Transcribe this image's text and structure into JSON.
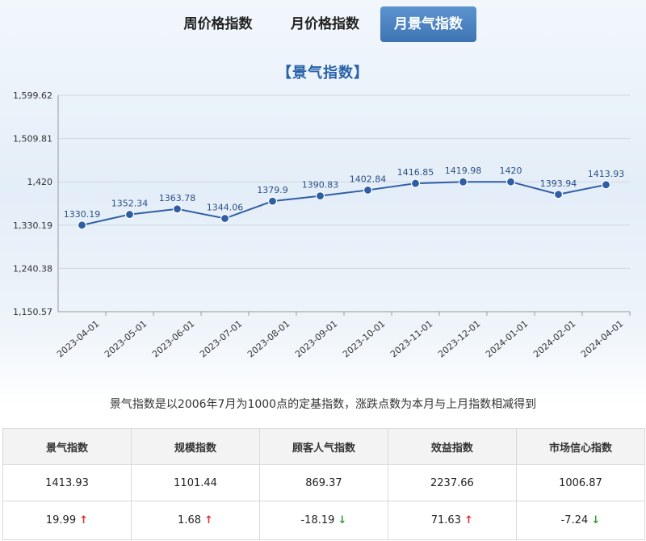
{
  "tabs": [
    {
      "label": "周价格指数",
      "active": false
    },
    {
      "label": "月价格指数",
      "active": false
    },
    {
      "label": "月景气指数",
      "active": true
    }
  ],
  "chart_title": "【景气指数】",
  "chart_data": {
    "type": "line",
    "title": "【景气指数】",
    "categories": [
      "2023-04-01",
      "2023-05-01",
      "2023-06-01",
      "2023-07-01",
      "2023-08-01",
      "2023-09-01",
      "2023-10-01",
      "2023-11-01",
      "2023-12-01",
      "2024-01-01",
      "2024-02-01",
      "2024-04-01"
    ],
    "values": [
      1330.19,
      1352.34,
      1363.78,
      1344.06,
      1379.9,
      1390.83,
      1402.84,
      1416.85,
      1419.98,
      1420,
      1393.94,
      1413.93
    ],
    "value_labels": [
      "1330.19",
      "1352.34",
      "1363.78",
      "1344.06",
      "1379.9",
      "1390.83",
      "1402.84",
      "1416.85",
      "1419.98",
      "1420",
      "1393.94",
      "1413.93"
    ],
    "ylim": [
      1150.57,
      1599.62
    ],
    "yticks": [
      "1,599.62",
      "1,509.81",
      "1,420",
      "1,330.19",
      "1,240.38",
      "1,150.57"
    ],
    "xlabel": "",
    "ylabel": "",
    "grid": true,
    "line_color": "#2f5ea5",
    "marker_color": "#2f5ea5"
  },
  "note": "景气指数是以2006年7月为1000点的定基指数，涨跌点数为本月与上月指数相减得到",
  "table": {
    "headers": [
      "景气指数",
      "规模指数",
      "顾客人气指数",
      "效益指数",
      "市场信心指数"
    ],
    "values": [
      "1413.93",
      "1101.44",
      "869.37",
      "2237.66",
      "1006.87"
    ],
    "changes": [
      {
        "value": "19.99",
        "dir": "up",
        "arrow": "↑"
      },
      {
        "value": "1.68",
        "dir": "up",
        "arrow": "↑"
      },
      {
        "value": "-18.19",
        "dir": "down",
        "arrow": "↓"
      },
      {
        "value": "71.63",
        "dir": "up",
        "arrow": "↑"
      },
      {
        "value": "-7.24",
        "dir": "down",
        "arrow": "↓"
      }
    ]
  },
  "colors": {
    "accent": "#3f74b3",
    "up": "#d9302e",
    "down": "#3a9a3a"
  }
}
